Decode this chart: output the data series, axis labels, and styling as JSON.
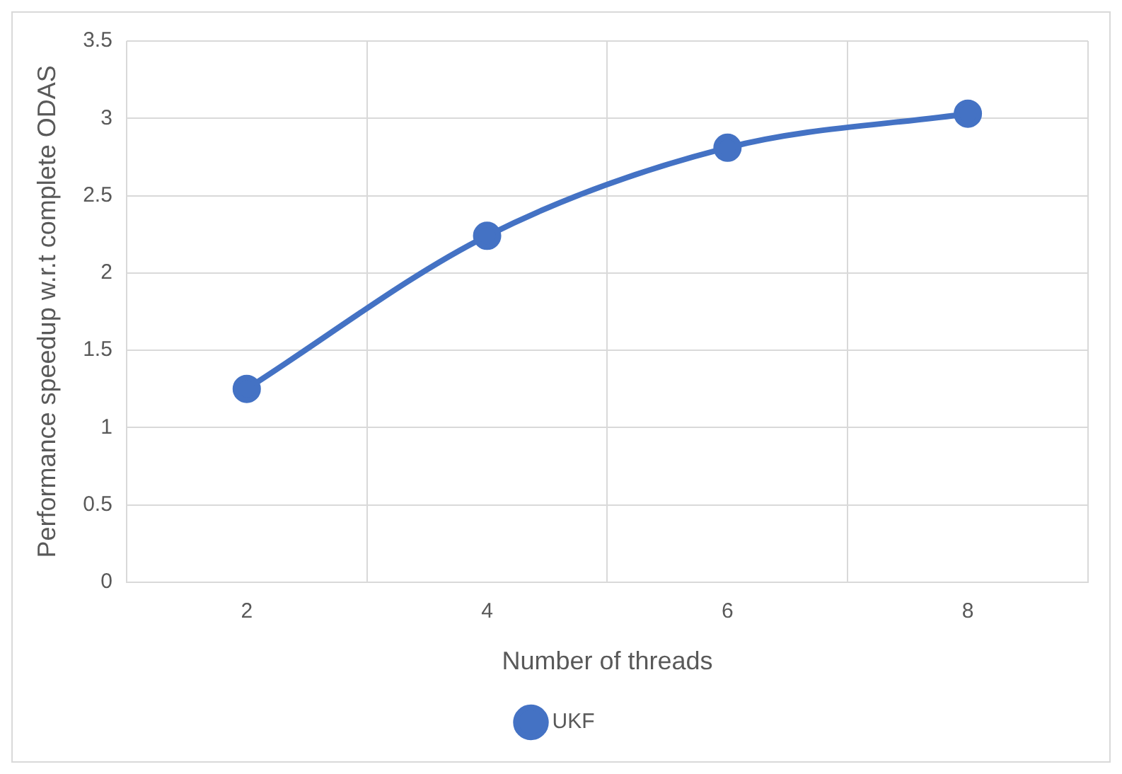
{
  "chart_data": {
    "type": "line",
    "xlabel": "Number of threads",
    "ylabel": "Performance speedup w.r.t complete ODAS",
    "categories": [
      "2",
      "4",
      "6",
      "8"
    ],
    "series": [
      {
        "name": "UKF",
        "color": "#4472c4",
        "values": [
          1.25,
          2.24,
          2.81,
          3.03
        ]
      }
    ],
    "ylim": [
      0,
      3.5
    ],
    "yticks": [
      0,
      0.5,
      1,
      1.5,
      2,
      2.5,
      3,
      3.5
    ],
    "grid": true,
    "legend": "bottom",
    "marker": "circle",
    "line_style": "solid"
  }
}
